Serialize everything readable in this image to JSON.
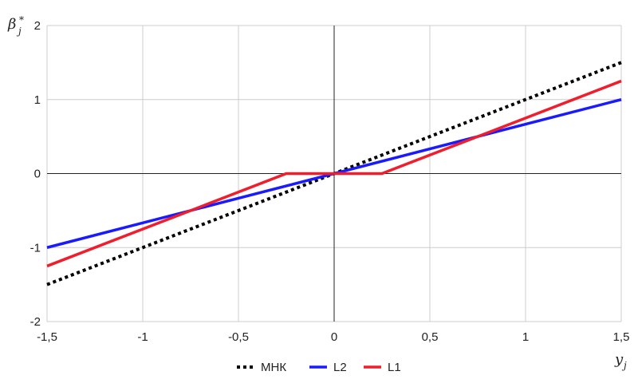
{
  "chart_data": {
    "type": "line",
    "xlabel": "y",
    "xlabel_sub": "j",
    "ylabel": "β",
    "ylabel_sub": "j",
    "ylabel_sup": "*",
    "xlim": [
      -1.5,
      1.5
    ],
    "ylim": [
      -2,
      2
    ],
    "xticks": [
      -1.5,
      -1,
      -0.5,
      0,
      0.5,
      1,
      1.5
    ],
    "xtick_labels": [
      "-1,5",
      "-1",
      "-0,5",
      "0",
      "0,5",
      "1",
      "1,5"
    ],
    "yticks": [
      -2,
      -1,
      0,
      1,
      2
    ],
    "ytick_labels": [
      "-2",
      "-1",
      "0",
      "1",
      "2"
    ],
    "grid": true,
    "legend_position": "bottom",
    "series": [
      {
        "name": "МНК",
        "color": "#000000",
        "style": "dotted",
        "x": [
          -1.5,
          1.5
        ],
        "y": [
          -1.5,
          1.5
        ]
      },
      {
        "name": "L2",
        "color": "#1a1aff",
        "style": "solid",
        "x": [
          -1.5,
          1.5
        ],
        "y": [
          -1,
          1
        ]
      },
      {
        "name": "L1",
        "color": "#f01e2c",
        "style": "solid",
        "x": [
          -1.5,
          -0.25,
          0.25,
          1.5
        ],
        "y": [
          -1.25,
          0,
          0,
          1.25
        ]
      }
    ]
  }
}
